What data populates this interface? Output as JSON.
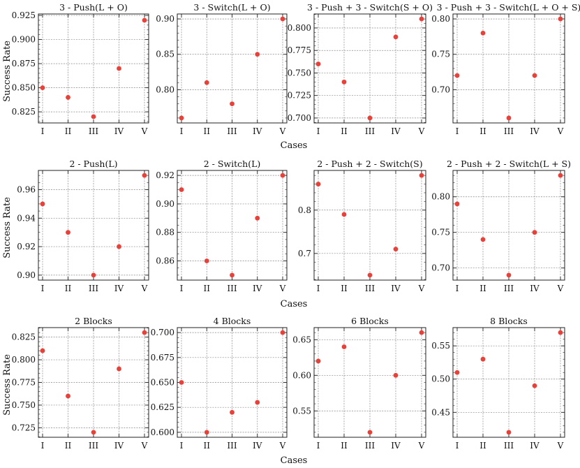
{
  "figure": {
    "xlabel": "Cases",
    "ylabel": "Success Rate",
    "point_color": "#e8413a"
  },
  "chart_data": [
    {
      "type": "scatter",
      "row": 0,
      "col": 0,
      "title": "3 - Push(L + O)",
      "categories": [
        "I",
        "II",
        "III",
        "IV",
        "V"
      ],
      "values": [
        0.85,
        0.84,
        0.82,
        0.87,
        0.92
      ],
      "ylim": [
        0.8135,
        0.9265
      ],
      "yticks": [
        0.825,
        0.85,
        0.875,
        0.9,
        0.925
      ],
      "ytick_labels": [
        "0.825",
        "0.850",
        "0.875",
        "0.900",
        "0.925"
      ],
      "minor_step": 0.005,
      "grid": true
    },
    {
      "type": "scatter",
      "row": 0,
      "col": 1,
      "title": "3 - Switch(L + O)",
      "categories": [
        "I",
        "II",
        "III",
        "IV",
        "V"
      ],
      "values": [
        0.76,
        0.81,
        0.78,
        0.85,
        0.9
      ],
      "ylim": [
        0.753,
        0.907
      ],
      "yticks": [
        0.8,
        0.85,
        0.9
      ],
      "ytick_labels": [
        "0.80",
        "0.85",
        "0.90"
      ],
      "minor_step": 0.01,
      "grid": true
    },
    {
      "type": "scatter",
      "row": 0,
      "col": 2,
      "title": "3 - Push + 3 - Switch(S + O)",
      "categories": [
        "I",
        "II",
        "III",
        "IV",
        "V"
      ],
      "values": [
        0.76,
        0.74,
        0.7,
        0.79,
        0.81
      ],
      "ylim": [
        0.6945,
        0.8155
      ],
      "yticks": [
        0.7,
        0.725,
        0.75,
        0.775,
        0.8
      ],
      "ytick_labels": [
        "0.700",
        "0.725",
        "0.750",
        "0.775",
        "0.800"
      ],
      "minor_step": 0.005,
      "grid": true
    },
    {
      "type": "scatter",
      "row": 0,
      "col": 3,
      "title": "3 - Push + 3 - Switch(L + O + S)",
      "categories": [
        "I",
        "II",
        "III",
        "IV",
        "V"
      ],
      "values": [
        0.72,
        0.78,
        0.66,
        0.72,
        0.8
      ],
      "ylim": [
        0.653,
        0.807
      ],
      "yticks": [
        0.7,
        0.75,
        0.8
      ],
      "ytick_labels": [
        "0.70",
        "0.75",
        "0.80"
      ],
      "minor_step": 0.01,
      "grid": true
    },
    {
      "type": "scatter",
      "row": 1,
      "col": 0,
      "title": "2 - Push(L)",
      "categories": [
        "I",
        "II",
        "III",
        "IV",
        "V"
      ],
      "values": [
        0.95,
        0.93,
        0.9,
        0.92,
        0.97
      ],
      "ylim": [
        0.8965,
        0.9735
      ],
      "yticks": [
        0.9,
        0.92,
        0.94,
        0.96
      ],
      "ytick_labels": [
        "0.90",
        "0.92",
        "0.94",
        "0.96"
      ],
      "minor_step": 0.005,
      "grid": true
    },
    {
      "type": "scatter",
      "row": 1,
      "col": 1,
      "title": "2 - Switch(L)",
      "categories": [
        "I",
        "II",
        "III",
        "IV",
        "V"
      ],
      "values": [
        0.91,
        0.86,
        0.85,
        0.89,
        0.92
      ],
      "ylim": [
        0.8465,
        0.9235
      ],
      "yticks": [
        0.86,
        0.88,
        0.9,
        0.92
      ],
      "ytick_labels": [
        "0.86",
        "0.88",
        "0.90",
        "0.92"
      ],
      "minor_step": 0.005,
      "grid": true
    },
    {
      "type": "scatter",
      "row": 1,
      "col": 2,
      "title": "2 - Push + 2 - Switch(S)",
      "categories": [
        "I",
        "II",
        "III",
        "IV",
        "V"
      ],
      "values": [
        0.86,
        0.79,
        0.65,
        0.71,
        0.88
      ],
      "ylim": [
        0.6385,
        0.8915
      ],
      "yticks": [
        0.7,
        0.8
      ],
      "ytick_labels": [
        "0.7",
        "0.8"
      ],
      "minor_step": 0.02,
      "grid": true
    },
    {
      "type": "scatter",
      "row": 1,
      "col": 3,
      "title": "2 - Push + 2 - Switch(L + S)",
      "categories": [
        "I",
        "II",
        "III",
        "IV",
        "V"
      ],
      "values": [
        0.79,
        0.74,
        0.69,
        0.75,
        0.83
      ],
      "ylim": [
        0.683,
        0.837
      ],
      "yticks": [
        0.7,
        0.75,
        0.8
      ],
      "ytick_labels": [
        "0.70",
        "0.75",
        "0.80"
      ],
      "minor_step": 0.01,
      "grid": true
    },
    {
      "type": "scatter",
      "row": 2,
      "col": 0,
      "title": "2 Blocks",
      "categories": [
        "I",
        "II",
        "III",
        "IV",
        "V"
      ],
      "values": [
        0.81,
        0.76,
        0.72,
        0.79,
        0.83
      ],
      "ylim": [
        0.7145,
        0.8355
      ],
      "yticks": [
        0.725,
        0.75,
        0.775,
        0.8,
        0.825
      ],
      "ytick_labels": [
        "0.725",
        "0.750",
        "0.775",
        "0.800",
        "0.825"
      ],
      "minor_step": 0.005,
      "grid": true
    },
    {
      "type": "scatter",
      "row": 2,
      "col": 1,
      "title": "4 Blocks",
      "categories": [
        "I",
        "II",
        "III",
        "IV",
        "V"
      ],
      "values": [
        0.65,
        0.6,
        0.62,
        0.63,
        0.7
      ],
      "ylim": [
        0.595,
        0.705
      ],
      "yticks": [
        0.6,
        0.625,
        0.65,
        0.675,
        0.7
      ],
      "ytick_labels": [
        "0.600",
        "0.625",
        "0.650",
        "0.675",
        "0.700"
      ],
      "minor_step": 0.005,
      "grid": true
    },
    {
      "type": "scatter",
      "row": 2,
      "col": 2,
      "title": "6 Blocks",
      "categories": [
        "I",
        "II",
        "III",
        "IV",
        "V"
      ],
      "values": [
        0.62,
        0.64,
        0.52,
        0.6,
        0.66
      ],
      "ylim": [
        0.513,
        0.667
      ],
      "yticks": [
        0.55,
        0.6,
        0.65
      ],
      "ytick_labels": [
        "0.55",
        "0.60",
        "0.65"
      ],
      "minor_step": 0.01,
      "grid": true
    },
    {
      "type": "scatter",
      "row": 2,
      "col": 3,
      "title": "8 Blocks",
      "categories": [
        "I",
        "II",
        "III",
        "IV",
        "V"
      ],
      "values": [
        0.51,
        0.53,
        0.42,
        0.49,
        0.57
      ],
      "ylim": [
        0.4125,
        0.5775
      ],
      "yticks": [
        0.45,
        0.5,
        0.55
      ],
      "ytick_labels": [
        "0.45",
        "0.50",
        "0.55"
      ],
      "minor_step": 0.01,
      "grid": true
    }
  ]
}
